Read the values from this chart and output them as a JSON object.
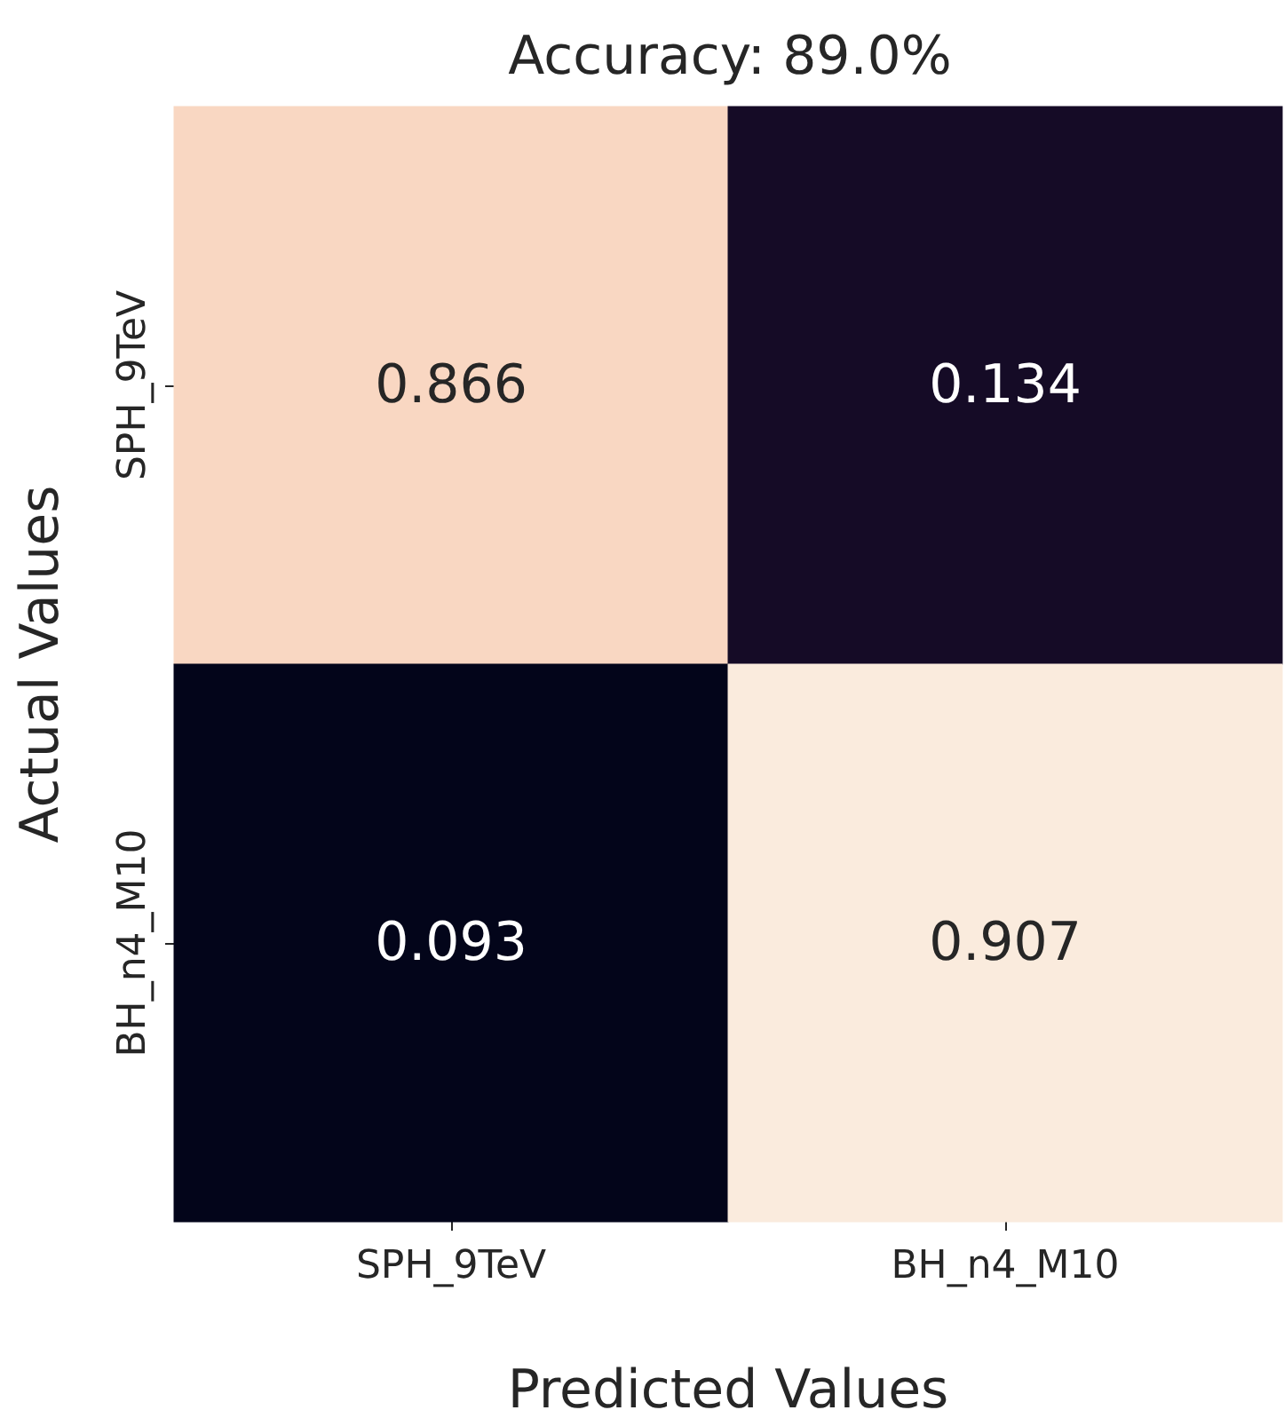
{
  "chart_data": {
    "type": "heatmap",
    "title": "Accuracy: 89.0%",
    "xlabel": "Predicted Values",
    "ylabel": "Actual Values",
    "categories": [
      "SPH_9TeV",
      "BH_n4_M10"
    ],
    "y_categories": [
      "SPH_9TeV",
      "BH_n4_M10"
    ],
    "cells": [
      [
        0.866,
        0.134
      ],
      [
        0.093,
        0.907
      ]
    ],
    "colors": [
      "#03051a",
      "#4c1d4b",
      "#a11a5b",
      "#e83f3f",
      "#f69c73",
      "#faebdd"
    ],
    "data_labels": true
  }
}
